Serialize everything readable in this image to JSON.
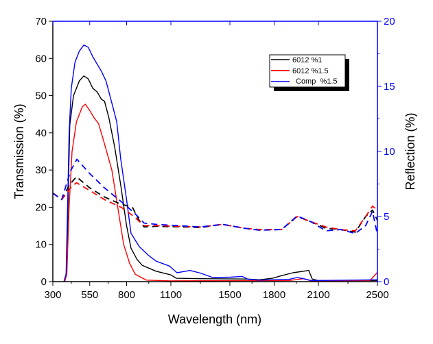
{
  "chart_data": {
    "type": "line",
    "xlabel": "Wavelength (nm)",
    "ylabel": "Transmission (%)",
    "y2label": "Reflection (%)",
    "xlim": [
      300,
      2500
    ],
    "ylim": [
      0,
      70
    ],
    "y2lim": [
      0,
      20
    ],
    "xticks": [
      300,
      550,
      800,
      1100,
      1500,
      1800,
      2100,
      2500
    ],
    "yticks": [
      0,
      10,
      20,
      30,
      40,
      50,
      60,
      70
    ],
    "y2ticks": [
      0,
      5,
      10,
      15,
      20
    ],
    "legend_position": "top-right",
    "legend": [
      "6012 %1",
      "6012 %1.5",
      "Comp  %1.5"
    ],
    "colors": {
      "black": "#000000",
      "red": "#ff0000",
      "blue": "#0000ff"
    },
    "series": [
      {
        "name": "6012 %1",
        "axis": "left",
        "style": "solid",
        "color": "#000000",
        "points": [
          [
            380,
            0
          ],
          [
            395,
            3
          ],
          [
            405,
            25
          ],
          [
            415,
            42
          ],
          [
            440,
            50
          ],
          [
            480,
            54
          ],
          [
            510,
            55.3
          ],
          [
            540,
            54.5
          ],
          [
            570,
            52
          ],
          [
            600,
            51
          ],
          [
            630,
            49
          ],
          [
            650,
            48.5
          ],
          [
            680,
            44
          ],
          [
            720,
            36
          ],
          [
            760,
            26
          ],
          [
            800,
            15
          ],
          [
            830,
            9
          ],
          [
            870,
            6
          ],
          [
            905,
            4.4
          ],
          [
            1000,
            2.8
          ],
          [
            1100,
            1.8
          ],
          [
            1137,
            0.9
          ],
          [
            1300,
            0.8
          ],
          [
            1616,
            0.7
          ],
          [
            1700,
            0.5
          ],
          [
            1788,
            0.9
          ],
          [
            1850,
            1.6
          ],
          [
            1928,
            2.4
          ],
          [
            2035,
            3
          ],
          [
            2058,
            0.7
          ],
          [
            2100,
            0.3
          ],
          [
            2500,
            0.3
          ]
        ]
      },
      {
        "name": "6012 %1.5",
        "axis": "left",
        "style": "solid",
        "color": "#ff0000",
        "points": [
          [
            380,
            0
          ],
          [
            395,
            2
          ],
          [
            410,
            20
          ],
          [
            430,
            35
          ],
          [
            460,
            43
          ],
          [
            500,
            47
          ],
          [
            520,
            47.7
          ],
          [
            550,
            46
          ],
          [
            580,
            44
          ],
          [
            610,
            42.5
          ],
          [
            650,
            37
          ],
          [
            700,
            30
          ],
          [
            740,
            20
          ],
          [
            780,
            10
          ],
          [
            820,
            5
          ],
          [
            858,
            2
          ],
          [
            933,
            0.4
          ],
          [
            1100,
            0.2
          ],
          [
            1900,
            0.3
          ],
          [
            2000,
            0.8
          ],
          [
            2050,
            0.2
          ],
          [
            2450,
            0.3
          ],
          [
            2500,
            2.5
          ]
        ]
      },
      {
        "name": "Comp %1.5",
        "axis": "left",
        "style": "solid",
        "color": "#0000ff",
        "points": [
          [
            375,
            0
          ],
          [
            390,
            2
          ],
          [
            400,
            20
          ],
          [
            410,
            40
          ],
          [
            425,
            52
          ],
          [
            450,
            59
          ],
          [
            480,
            62
          ],
          [
            510,
            63.6
          ],
          [
            540,
            63
          ],
          [
            570,
            60.5
          ],
          [
            600,
            58.5
          ],
          [
            630,
            56.5
          ],
          [
            660,
            54
          ],
          [
            700,
            48
          ],
          [
            733,
            43
          ],
          [
            760,
            33
          ],
          [
            800,
            22
          ],
          [
            830,
            13
          ],
          [
            886,
            9.4
          ],
          [
            950,
            7
          ],
          [
            1000,
            5.5
          ],
          [
            1090,
            4.2
          ],
          [
            1142,
            2.4
          ],
          [
            1170,
            2.6
          ],
          [
            1230,
            3
          ],
          [
            1300,
            2.3
          ],
          [
            1384,
            1.1
          ],
          [
            1500,
            1.2
          ],
          [
            1584,
            1.4
          ],
          [
            1626,
            0.6
          ],
          [
            1700,
            0.4
          ],
          [
            1900,
            0.6
          ],
          [
            1956,
            1.1
          ],
          [
            2000,
            0.8
          ],
          [
            2050,
            0.3
          ],
          [
            2500,
            0.5
          ]
        ]
      },
      {
        "name": "6012 %1 reflection",
        "axis": "right",
        "style": "dashed",
        "color": "#000000",
        "points": [
          [
            300,
            6.8
          ],
          [
            360,
            6.3
          ],
          [
            410,
            7.4
          ],
          [
            460,
            8.05
          ],
          [
            550,
            7.2
          ],
          [
            650,
            6.5
          ],
          [
            750,
            6.0
          ],
          [
            840,
            5.7
          ],
          [
            880,
            4.8
          ],
          [
            918,
            4.2
          ],
          [
            1000,
            4.25
          ],
          [
            1200,
            4.2
          ],
          [
            1300,
            4.15
          ],
          [
            1450,
            4.4
          ],
          [
            1600,
            4.1
          ],
          [
            1700,
            3.95
          ],
          [
            1850,
            4.0
          ],
          [
            1956,
            5.0
          ],
          [
            2050,
            4.6
          ],
          [
            2150,
            4.1
          ],
          [
            2250,
            4.0
          ],
          [
            2350,
            3.8
          ],
          [
            2420,
            5.0
          ],
          [
            2467,
            5.5
          ],
          [
            2500,
            4.7
          ]
        ]
      },
      {
        "name": "6012 %1.5 reflection",
        "axis": "right",
        "style": "dashed",
        "color": "#ff0000",
        "points": [
          [
            300,
            6.8
          ],
          [
            360,
            6.3
          ],
          [
            420,
            7.2
          ],
          [
            460,
            7.6
          ],
          [
            550,
            7.0
          ],
          [
            650,
            6.3
          ],
          [
            765,
            5.7
          ],
          [
            850,
            5.0
          ],
          [
            918,
            4.3
          ],
          [
            1000,
            4.3
          ],
          [
            1300,
            4.2
          ],
          [
            1450,
            4.4
          ],
          [
            1600,
            4.1
          ],
          [
            1700,
            4.0
          ],
          [
            1850,
            4.0
          ],
          [
            1956,
            5.0
          ],
          [
            2050,
            4.6
          ],
          [
            2150,
            4.2
          ],
          [
            2250,
            4.0
          ],
          [
            2350,
            3.9
          ],
          [
            2420,
            5.0
          ],
          [
            2467,
            5.8
          ],
          [
            2500,
            5.5
          ]
        ]
      },
      {
        "name": "Comp %1.5 reflection",
        "axis": "right",
        "style": "dashed",
        "color": "#0000ff",
        "points": [
          [
            300,
            6.8
          ],
          [
            360,
            6.3
          ],
          [
            420,
            8.5
          ],
          [
            463,
            9.4
          ],
          [
            550,
            8.3
          ],
          [
            650,
            7.2
          ],
          [
            779,
            6.0
          ],
          [
            850,
            5.3
          ],
          [
            918,
            4.5
          ],
          [
            1000,
            4.4
          ],
          [
            1300,
            4.2
          ],
          [
            1450,
            4.4
          ],
          [
            1600,
            4.1
          ],
          [
            1700,
            3.95
          ],
          [
            1850,
            4.0
          ],
          [
            1956,
            5.05
          ],
          [
            2050,
            4.6
          ],
          [
            2150,
            3.9
          ],
          [
            2250,
            4.0
          ],
          [
            2350,
            3.7
          ],
          [
            2420,
            4.3
          ],
          [
            2467,
            5.4
          ],
          [
            2500,
            3.6
          ]
        ]
      }
    ]
  }
}
